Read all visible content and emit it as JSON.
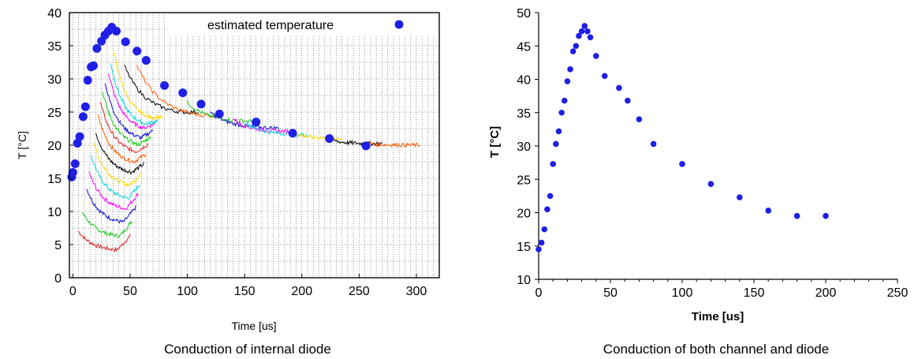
{
  "chart_data": [
    {
      "type": "scatter",
      "caption": "Conduction of internal diode",
      "xlabel": "Time [us]",
      "ylabel": "T [°C]",
      "xlim": [
        -3,
        320
      ],
      "ylim": [
        0,
        40
      ],
      "xticks": [
        0,
        50,
        100,
        150,
        200,
        250,
        300
      ],
      "yticks": [
        0,
        5,
        10,
        15,
        20,
        25,
        30,
        35,
        40
      ],
      "grid": true,
      "legend": {
        "position": "top-right",
        "entries": [
          "estimated temperature"
        ]
      },
      "colors": {
        "marker": "#1f1fe6"
      },
      "series": [
        {
          "name": "estimated temperature",
          "x": [
            -1,
            0,
            2,
            4,
            6,
            9,
            11,
            13,
            16,
            18,
            21,
            25,
            28,
            31,
            34,
            38,
            46,
            56,
            64,
            80,
            96,
            112,
            128,
            160,
            192,
            224,
            256
          ],
          "y": [
            15.2,
            15.9,
            17.2,
            20.3,
            21.3,
            24.3,
            25.8,
            29.8,
            31.8,
            32.0,
            34.6,
            35.7,
            36.6,
            37.2,
            37.8,
            37.2,
            35.6,
            34.2,
            32.8,
            29.0,
            27.9,
            26.2,
            24.7,
            23.5,
            21.8,
            21.0,
            19.9
          ]
        }
      ],
      "traces": [
        {
          "color": "#e02020",
          "x0": 5,
          "x1": 50,
          "y_start": 7.0,
          "y_min": 4.0,
          "y_end": 6.2
        },
        {
          "color": "#18c818",
          "x0": 8,
          "x1": 52,
          "y_start": 10.0,
          "y_min": 6.0,
          "y_end": 8.5
        },
        {
          "color": "#1010d0",
          "x0": 12,
          "x1": 55,
          "y_start": 13.5,
          "y_min": 8.0,
          "y_end": 10.5
        },
        {
          "color": "#ff00ff",
          "x0": 14,
          "x1": 57,
          "y_start": 16.0,
          "y_min": 10.0,
          "y_end": 12.5
        },
        {
          "color": "#00d8e0",
          "x0": 16,
          "x1": 59,
          "y_start": 18.5,
          "y_min": 11.5,
          "y_end": 14.0
        },
        {
          "color": "#ffd700",
          "x0": 18,
          "x1": 60,
          "y_start": 20.5,
          "y_min": 13.5,
          "y_end": 15.5
        },
        {
          "color": "#000000",
          "x0": 20,
          "x1": 62,
          "y_start": 22.0,
          "y_min": 15.5,
          "y_end": 17.0
        },
        {
          "color": "#ff5a00",
          "x0": 22,
          "x1": 64,
          "y_start": 24.5,
          "y_min": 17.0,
          "y_end": 18.5
        },
        {
          "color": "#e02020",
          "x0": 24,
          "x1": 66,
          "y_start": 26.5,
          "y_min": 18.5,
          "y_end": 20.0
        },
        {
          "color": "#18c818",
          "x0": 26,
          "x1": 68,
          "y_start": 28.0,
          "y_min": 19.5,
          "y_end": 21.0
        },
        {
          "color": "#1010d0",
          "x0": 28,
          "x1": 70,
          "y_start": 29.5,
          "y_min": 20.5,
          "y_end": 22.0
        },
        {
          "color": "#ff00ff",
          "x0": 31,
          "x1": 72,
          "y_start": 31.0,
          "y_min": 22.0,
          "y_end": 23.0
        },
        {
          "color": "#00d8e0",
          "x0": 33,
          "x1": 74,
          "y_start": 32.5,
          "y_min": 22.5,
          "y_end": 23.5
        },
        {
          "color": "#ffd700",
          "x0": 36,
          "x1": 78,
          "y_start": 34.0,
          "y_min": 23.5,
          "y_end": 24.0
        },
        {
          "color": "#000000",
          "x0": 45,
          "x1": 110,
          "y_start": 32.0,
          "y_min": 24.5,
          "y_end": 24.8
        },
        {
          "color": "#ff5a00",
          "x0": 56,
          "x1": 130,
          "y_start": 32.0,
          "y_min": 24.0,
          "y_end": 24.2
        },
        {
          "color": "#18c818",
          "x0": 100,
          "x1": 160,
          "y_start": 26.5,
          "y_min": 23.5,
          "y_end": 23.5
        },
        {
          "color": "#1010d0",
          "x0": 120,
          "x1": 180,
          "y_start": 25.0,
          "y_min": 22.5,
          "y_end": 22.5
        },
        {
          "color": "#ff00ff",
          "x0": 140,
          "x1": 190,
          "y_start": 24.0,
          "y_min": 22.0,
          "y_end": 22.0
        },
        {
          "color": "#00d8e0",
          "x0": 150,
          "x1": 205,
          "y_start": 23.5,
          "y_min": 21.5,
          "y_end": 21.5
        },
        {
          "color": "#ffd700",
          "x0": 190,
          "x1": 235,
          "y_start": 22.0,
          "y_min": 21.0,
          "y_end": 21.0
        },
        {
          "color": "#000000",
          "x0": 225,
          "x1": 270,
          "y_start": 20.8,
          "y_min": 20.2,
          "y_end": 20.2
        },
        {
          "color": "#ff5a00",
          "x0": 255,
          "x1": 303,
          "y_start": 20.3,
          "y_min": 20.0,
          "y_end": 20.0
        }
      ]
    },
    {
      "type": "scatter",
      "caption": "Conduction of both channel and diode",
      "xlabel": "Time [us]",
      "ylabel": "T [°C]",
      "xlim": [
        0,
        250
      ],
      "ylim": [
        10,
        50
      ],
      "xticks": [
        0,
        50,
        100,
        150,
        200,
        250
      ],
      "yticks": [
        10,
        15,
        20,
        25,
        30,
        35,
        40,
        45,
        50
      ],
      "grid": false,
      "colors": {
        "marker": "#1f1fe6"
      },
      "series": [
        {
          "x": [
            0,
            2,
            4,
            6,
            8,
            10,
            12,
            14,
            16,
            18,
            20,
            22,
            24,
            26,
            28,
            30,
            32,
            34,
            36,
            40,
            46,
            56,
            62,
            70,
            80,
            100,
            120,
            140,
            160,
            180,
            200
          ],
          "y": [
            14.5,
            15.5,
            17.5,
            20.5,
            22.5,
            27.3,
            30.3,
            32.2,
            35.0,
            36.8,
            39.7,
            41.5,
            44.2,
            45.0,
            46.5,
            47.2,
            48.0,
            47.2,
            46.3,
            43.5,
            40.5,
            38.7,
            36.8,
            34.0,
            30.3,
            27.3,
            24.3,
            22.3,
            20.3,
            19.5,
            19.5
          ]
        }
      ]
    }
  ]
}
